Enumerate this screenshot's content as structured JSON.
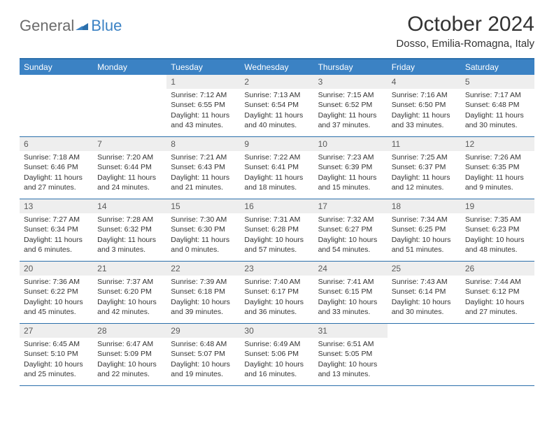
{
  "logo": {
    "general": "General",
    "blue": "Blue"
  },
  "title": "October 2024",
  "location": "Dosso, Emilia-Romagna, Italy",
  "colors": {
    "header_bg": "#3b82c4",
    "header_text": "#ffffff",
    "border": "#2b6fab",
    "daynum_bg": "#eeeeee",
    "daynum_text": "#5a5a5a",
    "body_text": "#333333",
    "logo_grey": "#6b6b6b",
    "logo_blue": "#3b82c4"
  },
  "weekdays": [
    "Sunday",
    "Monday",
    "Tuesday",
    "Wednesday",
    "Thursday",
    "Friday",
    "Saturday"
  ],
  "weeks": [
    [
      {
        "n": "",
        "sr": "",
        "ss": "",
        "dl": "",
        "empty": true
      },
      {
        "n": "",
        "sr": "",
        "ss": "",
        "dl": "",
        "empty": true
      },
      {
        "n": "1",
        "sr": "Sunrise: 7:12 AM",
        "ss": "Sunset: 6:55 PM",
        "dl": "Daylight: 11 hours and 43 minutes."
      },
      {
        "n": "2",
        "sr": "Sunrise: 7:13 AM",
        "ss": "Sunset: 6:54 PM",
        "dl": "Daylight: 11 hours and 40 minutes."
      },
      {
        "n": "3",
        "sr": "Sunrise: 7:15 AM",
        "ss": "Sunset: 6:52 PM",
        "dl": "Daylight: 11 hours and 37 minutes."
      },
      {
        "n": "4",
        "sr": "Sunrise: 7:16 AM",
        "ss": "Sunset: 6:50 PM",
        "dl": "Daylight: 11 hours and 33 minutes."
      },
      {
        "n": "5",
        "sr": "Sunrise: 7:17 AM",
        "ss": "Sunset: 6:48 PM",
        "dl": "Daylight: 11 hours and 30 minutes."
      }
    ],
    [
      {
        "n": "6",
        "sr": "Sunrise: 7:18 AM",
        "ss": "Sunset: 6:46 PM",
        "dl": "Daylight: 11 hours and 27 minutes."
      },
      {
        "n": "7",
        "sr": "Sunrise: 7:20 AM",
        "ss": "Sunset: 6:44 PM",
        "dl": "Daylight: 11 hours and 24 minutes."
      },
      {
        "n": "8",
        "sr": "Sunrise: 7:21 AM",
        "ss": "Sunset: 6:43 PM",
        "dl": "Daylight: 11 hours and 21 minutes."
      },
      {
        "n": "9",
        "sr": "Sunrise: 7:22 AM",
        "ss": "Sunset: 6:41 PM",
        "dl": "Daylight: 11 hours and 18 minutes."
      },
      {
        "n": "10",
        "sr": "Sunrise: 7:23 AM",
        "ss": "Sunset: 6:39 PM",
        "dl": "Daylight: 11 hours and 15 minutes."
      },
      {
        "n": "11",
        "sr": "Sunrise: 7:25 AM",
        "ss": "Sunset: 6:37 PM",
        "dl": "Daylight: 11 hours and 12 minutes."
      },
      {
        "n": "12",
        "sr": "Sunrise: 7:26 AM",
        "ss": "Sunset: 6:35 PM",
        "dl": "Daylight: 11 hours and 9 minutes."
      }
    ],
    [
      {
        "n": "13",
        "sr": "Sunrise: 7:27 AM",
        "ss": "Sunset: 6:34 PM",
        "dl": "Daylight: 11 hours and 6 minutes."
      },
      {
        "n": "14",
        "sr": "Sunrise: 7:28 AM",
        "ss": "Sunset: 6:32 PM",
        "dl": "Daylight: 11 hours and 3 minutes."
      },
      {
        "n": "15",
        "sr": "Sunrise: 7:30 AM",
        "ss": "Sunset: 6:30 PM",
        "dl": "Daylight: 11 hours and 0 minutes."
      },
      {
        "n": "16",
        "sr": "Sunrise: 7:31 AM",
        "ss": "Sunset: 6:28 PM",
        "dl": "Daylight: 10 hours and 57 minutes."
      },
      {
        "n": "17",
        "sr": "Sunrise: 7:32 AM",
        "ss": "Sunset: 6:27 PM",
        "dl": "Daylight: 10 hours and 54 minutes."
      },
      {
        "n": "18",
        "sr": "Sunrise: 7:34 AM",
        "ss": "Sunset: 6:25 PM",
        "dl": "Daylight: 10 hours and 51 minutes."
      },
      {
        "n": "19",
        "sr": "Sunrise: 7:35 AM",
        "ss": "Sunset: 6:23 PM",
        "dl": "Daylight: 10 hours and 48 minutes."
      }
    ],
    [
      {
        "n": "20",
        "sr": "Sunrise: 7:36 AM",
        "ss": "Sunset: 6:22 PM",
        "dl": "Daylight: 10 hours and 45 minutes."
      },
      {
        "n": "21",
        "sr": "Sunrise: 7:37 AM",
        "ss": "Sunset: 6:20 PM",
        "dl": "Daylight: 10 hours and 42 minutes."
      },
      {
        "n": "22",
        "sr": "Sunrise: 7:39 AM",
        "ss": "Sunset: 6:18 PM",
        "dl": "Daylight: 10 hours and 39 minutes."
      },
      {
        "n": "23",
        "sr": "Sunrise: 7:40 AM",
        "ss": "Sunset: 6:17 PM",
        "dl": "Daylight: 10 hours and 36 minutes."
      },
      {
        "n": "24",
        "sr": "Sunrise: 7:41 AM",
        "ss": "Sunset: 6:15 PM",
        "dl": "Daylight: 10 hours and 33 minutes."
      },
      {
        "n": "25",
        "sr": "Sunrise: 7:43 AM",
        "ss": "Sunset: 6:14 PM",
        "dl": "Daylight: 10 hours and 30 minutes."
      },
      {
        "n": "26",
        "sr": "Sunrise: 7:44 AM",
        "ss": "Sunset: 6:12 PM",
        "dl": "Daylight: 10 hours and 27 minutes."
      }
    ],
    [
      {
        "n": "27",
        "sr": "Sunrise: 6:45 AM",
        "ss": "Sunset: 5:10 PM",
        "dl": "Daylight: 10 hours and 25 minutes."
      },
      {
        "n": "28",
        "sr": "Sunrise: 6:47 AM",
        "ss": "Sunset: 5:09 PM",
        "dl": "Daylight: 10 hours and 22 minutes."
      },
      {
        "n": "29",
        "sr": "Sunrise: 6:48 AM",
        "ss": "Sunset: 5:07 PM",
        "dl": "Daylight: 10 hours and 19 minutes."
      },
      {
        "n": "30",
        "sr": "Sunrise: 6:49 AM",
        "ss": "Sunset: 5:06 PM",
        "dl": "Daylight: 10 hours and 16 minutes."
      },
      {
        "n": "31",
        "sr": "Sunrise: 6:51 AM",
        "ss": "Sunset: 5:05 PM",
        "dl": "Daylight: 10 hours and 13 minutes."
      },
      {
        "n": "",
        "sr": "",
        "ss": "",
        "dl": "",
        "empty": true
      },
      {
        "n": "",
        "sr": "",
        "ss": "",
        "dl": "",
        "empty": true
      }
    ]
  ]
}
